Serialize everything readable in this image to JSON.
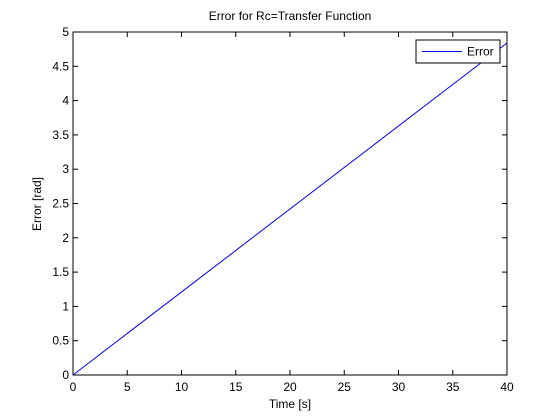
{
  "chart_data": {
    "type": "line",
    "title": "Error for Rc=Transfer Function",
    "xlabel": "Time [s]",
    "ylabel": "Error [rad]",
    "xlim": [
      0,
      40
    ],
    "ylim": [
      0,
      5
    ],
    "xticks": [
      0,
      5,
      10,
      15,
      20,
      25,
      30,
      35,
      40
    ],
    "yticks": [
      0,
      0.5,
      1,
      1.5,
      2,
      2.5,
      3,
      3.5,
      4,
      4.5,
      5
    ],
    "grid": false,
    "legend": {
      "position": "top-right"
    },
    "series": [
      {
        "name": "Error",
        "color": "#0000ff",
        "x": [
          0,
          40
        ],
        "y": [
          0,
          4.84
        ]
      }
    ]
  }
}
